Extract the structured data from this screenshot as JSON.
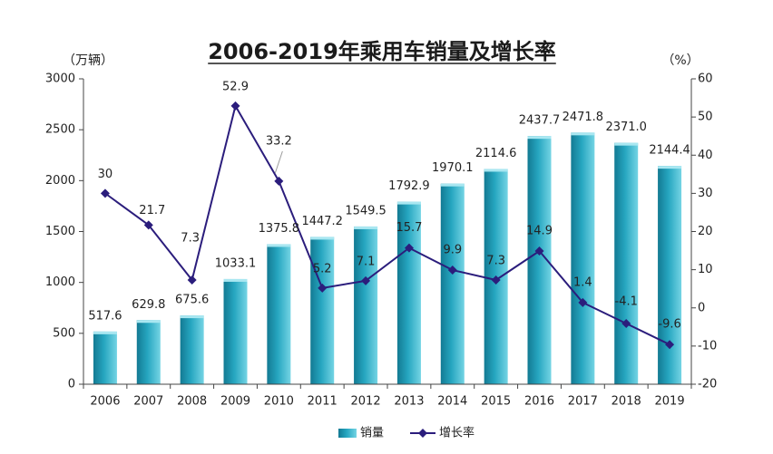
{
  "chart_data": {
    "type": "bar",
    "title": "2006-2019年乘用车销量及增长率",
    "categories": [
      "2006",
      "2007",
      "2008",
      "2009",
      "2010",
      "2011",
      "2012",
      "2013",
      "2014",
      "2015",
      "2016",
      "2017",
      "2018",
      "2019"
    ],
    "ylabel_left": "（万辆）",
    "ylabel_right": "（%）",
    "ylim_left": [
      0,
      3000
    ],
    "ylim_right": [
      -20,
      60
    ],
    "yticks_left": [
      "0",
      "500",
      "1000",
      "1500",
      "2000",
      "2500",
      "3000"
    ],
    "yticks_right": [
      "-20",
      "-10",
      "0",
      "10",
      "20",
      "30",
      "40",
      "50",
      "60"
    ],
    "grid": false,
    "legend_position": "bottom",
    "series": [
      {
        "name": "销量",
        "type": "bar",
        "axis": "left",
        "color": "#22a3bd",
        "values": [
          517.6,
          629.8,
          675.6,
          1033.1,
          1375.8,
          1447.2,
          1549.5,
          1792.9,
          1970.1,
          2114.6,
          2437.7,
          2471.8,
          2371.0,
          2144.4
        ],
        "labels": [
          "517.6",
          "629.8",
          "675.6",
          "1033.1",
          "1375.8",
          "1447.2",
          "1549.5",
          "1792.9",
          "1970.1",
          "2114.6",
          "2437.7",
          "2471.8",
          "2371.0",
          "2144.4"
        ]
      },
      {
        "name": "增长率",
        "type": "line",
        "axis": "right",
        "color": "#2b1d7c",
        "marker": "diamond",
        "values": [
          30,
          21.7,
          7.3,
          52.9,
          33.2,
          5.2,
          7.1,
          15.7,
          9.9,
          7.3,
          14.9,
          1.4,
          -4.1,
          -9.6
        ],
        "labels": [
          "30",
          "21.7",
          "7.3",
          "52.9",
          "33.2",
          "5.2",
          "7.1",
          "15.7",
          "9.9",
          "7.3",
          "14.9",
          "1.4",
          "-4.1",
          "-9.6"
        ]
      }
    ]
  }
}
